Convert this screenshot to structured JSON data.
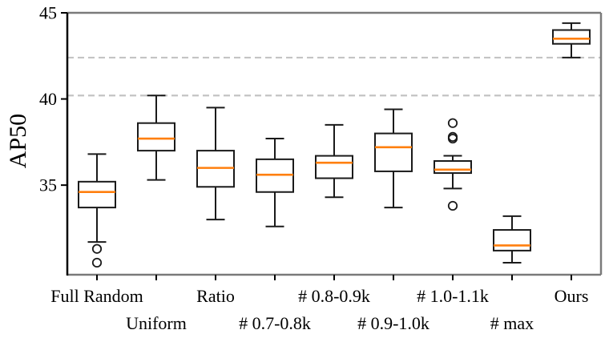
{
  "chart_data": {
    "type": "boxplot",
    "title": "",
    "xlabel": "",
    "ylabel": "AP50",
    "ylim": [
      29.8,
      45
    ],
    "yticks": [
      35,
      40,
      45
    ],
    "grid": "off",
    "legend": "none",
    "reference_lines": {
      "style": "dashed",
      "values": [
        42.4,
        40.2
      ]
    },
    "colors": {
      "median": "#ff7f0e",
      "box_stroke": "#1a1a1a",
      "outlier_stroke": "#1a1a1a",
      "dashed_line": "#c4c4c4",
      "spine_gray": "#7a7a7a",
      "spine_left": "#000000"
    },
    "categories": [
      "Full Random",
      "Uniform",
      "Ratio",
      "# 0.7-0.8k",
      "# 0.8-0.9k",
      "# 0.9-1.0k",
      "# 1.0-1.1k",
      "# max",
      "Ours"
    ],
    "boxes": [
      {
        "label": "Full Random",
        "whisker_low": 31.7,
        "q1": 33.7,
        "median": 34.6,
        "q3": 35.2,
        "whisker_high": 36.8,
        "outliers": [
          31.3,
          30.5
        ]
      },
      {
        "label": "Uniform",
        "whisker_low": 35.3,
        "q1": 37.0,
        "median": 37.7,
        "q3": 38.6,
        "whisker_high": 40.2,
        "outliers": []
      },
      {
        "label": "Ratio",
        "whisker_low": 33.0,
        "q1": 34.9,
        "median": 36.0,
        "q3": 37.0,
        "whisker_high": 39.5,
        "outliers": []
      },
      {
        "label": "# 0.7-0.8k",
        "whisker_low": 32.6,
        "q1": 34.6,
        "median": 35.6,
        "q3": 36.5,
        "whisker_high": 37.7,
        "outliers": []
      },
      {
        "label": "# 0.8-0.9k",
        "whisker_low": 34.3,
        "q1": 35.4,
        "median": 36.3,
        "q3": 36.7,
        "whisker_high": 38.5,
        "outliers": []
      },
      {
        "label": "# 0.9-1.0k",
        "whisker_low": 33.7,
        "q1": 35.8,
        "median": 37.2,
        "q3": 38.0,
        "whisker_high": 39.4,
        "outliers": []
      },
      {
        "label": "# 1.0-1.1k",
        "whisker_low": 34.8,
        "q1": 35.7,
        "median": 35.9,
        "q3": 36.4,
        "whisker_high": 36.7,
        "outliers": [
          38.6,
          37.8,
          37.7,
          33.8
        ]
      },
      {
        "label": "# max",
        "whisker_low": 30.5,
        "q1": 31.2,
        "median": 31.5,
        "q3": 32.4,
        "whisker_high": 33.2,
        "outliers": []
      },
      {
        "label": "Ours",
        "whisker_low": 42.4,
        "q1": 43.2,
        "median": 43.5,
        "q3": 44.0,
        "whisker_high": 44.4,
        "outliers": []
      }
    ]
  }
}
